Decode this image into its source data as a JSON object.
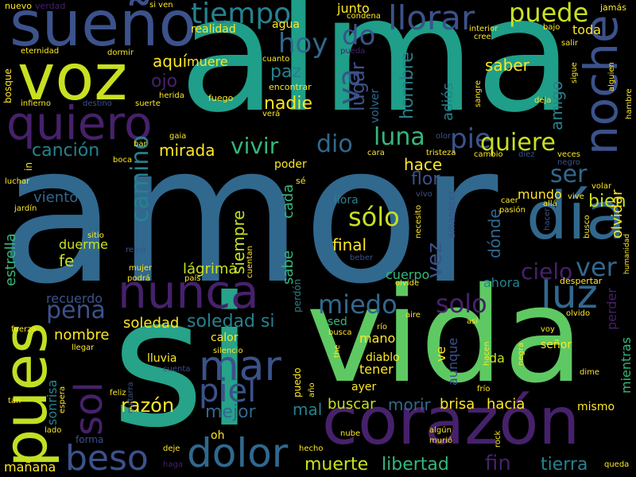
{
  "palette": {
    "background": "#000000",
    "dark_purple": "#46216b",
    "indigo": "#3b528b",
    "blue": "#31688e",
    "teal": "#26828e",
    "green_teal": "#1f9e89",
    "green": "#35b779",
    "light_green": "#6ece58",
    "lime": "#b5de2b",
    "yellow": "#fde725"
  },
  "words": {
    "amor": "amor",
    "alma": "alma",
    "vida": "vida",
    "si": "si",
    "corazon": "corazón",
    "pues": "pues",
    "voz": "voz",
    "sueno": "sueño",
    "quiero": "quiero",
    "noche": "noche",
    "dia": "día",
    "nunca": "nunca",
    "luz": "luz",
    "dolor": "dolor",
    "beso": "beso",
    "sol": "sol",
    "mar": "mar",
    "piel": "piel",
    "tiempo": "tiempo",
    "llorar": "llorar",
    "puede": "puede",
    "hoy": "hoy",
    "do": "do",
    "va": "va",
    "luna": "luna",
    "pie": "pie",
    "quiere": "quiere",
    "vivir": "vivir",
    "dio": "dio",
    "cancion": "canción",
    "mirada": "mirada",
    "camino": "camino",
    "solo": "solo",
    "solo_acc": "sólo",
    "ver": "ver",
    "cielo": "cielo",
    "miedo": "miedo",
    "pena": "pena",
    "soledad": "soledad",
    "soledad_si": "soledad si",
    "razon": "razón",
    "mejor": "mejor",
    "buscar": "buscar",
    "brisa": "brisa",
    "hacia": "hacia",
    "morir": "morir",
    "mal": "mal",
    "tierra": "tierra",
    "libertad": "libertad",
    "muerte": "muerte",
    "fin": "fin",
    "ser": "ser",
    "bien": "bien",
    "amigo": "amigo",
    "flor": "flor",
    "hace": "hace",
    "nadie": "nadie",
    "paz": "paz",
    "lugar": "lugar",
    "hombre": "hombre",
    "saber": "saber",
    "aqui": "aquí",
    "muere": "muere",
    "ojo": "ojo",
    "realidad": "realidad",
    "agua": "agua",
    "junto": "junto",
    "toda": "toda",
    "adios": "adiós",
    "volver": "volver",
    "viento": "viento",
    "estrella": "estrella",
    "lagrima": "lágrima",
    "duerme": "duerme",
    "fe": "fe",
    "sitio": "sitio",
    "recuerdo": "recuerdo",
    "nombre": "nombre",
    "siempre": "siempre",
    "cada": "cada",
    "sabe": "sabe",
    "final": "final",
    "vez": "vez",
    "cuerpo": "cuerpo",
    "donde": "dónde",
    "ahora": "ahora",
    "mundo": "mundo",
    "olvidar": "olvidar",
    "perder": "perder",
    "mientras": "mientras",
    "mismo": "mismo",
    "senor": "señor",
    "da": "da",
    "aunque": "aunque",
    "tener": "tener",
    "ayer": "ayer",
    "ve": "ve",
    "mano": "mano",
    "diablo": "diablo",
    "sed": "sed",
    "calor": "calor",
    "lluvia": "lluvia",
    "sonrisa": "sonrisa",
    "forma": "forma",
    "manana": "mañana",
    "oh": "oh",
    "poder": "poder",
    "nuevo": "nuevo",
    "verdad": "verdad",
    "eternidad": "eternidad",
    "bosque": "bosque",
    "infierno": "infierno",
    "destino": "destino",
    "suerte": "suerte",
    "herida": "herida",
    "dormir": "dormir",
    "cuanto": "cuanto",
    "encontrar": "encontrar",
    "fuego": "fuego",
    "vera": "verá",
    "gaia": "gaia",
    "bar": "bar",
    "boca": "boca",
    "luchar": "luchar",
    "jardin": "jardín",
    "in_w": "in",
    "reino": "reino",
    "mujer": "mujer",
    "podra": "podrá",
    "pais": "país",
    "cuentan": "cuentan",
    "perdon": "perdón",
    "beber": "beber",
    "necesito": "necesito",
    "vivo": "vivo",
    "amanecer": "amanecer",
    "olvide": "olvide",
    "rio": "río",
    "aire": "aire",
    "puedo": "puedo",
    "ano": "año",
    "busca": "busca",
    "the": "the",
    "asi": "así",
    "voy": "voy",
    "olvido": "olvido",
    "dime": "dime",
    "despertar": "despertar",
    "humanidad": "humanidad",
    "nube": "nube",
    "algun": "algún",
    "murio": "murió",
    "rock": "rock",
    "hecho": "hecho",
    "deje": "deje",
    "haga": "haga",
    "lado": "lado",
    "tan": "tan",
    "feliz": "feliz",
    "espera": "espera",
    "guitarra": "guitarra",
    "cuenta": "cuenta",
    "llegar": "llegar",
    "silencio": "silencio",
    "fuerza": "fuerza",
    "hacen": "hacen",
    "negra": "negra",
    "frio": "frío",
    "queda": "queda",
    "jamas": "jamás",
    "alguien": "alguien",
    "hambre": "hambre",
    "sigue": "sigue",
    "deja": "deja",
    "sangre": "sangre",
    "bajo": "bajo",
    "cree": "cree",
    "interior": "interior",
    "salir": "salir",
    "pueda": "pueda",
    "condena": "condena",
    "si_ven": "si ven",
    "veces": "veces",
    "negro": "negro",
    "volar": "volar",
    "tristeza": "tristeza",
    "cara": "cara",
    "olor": "olor",
    "cambio": "cambio",
    "diez": "diez",
    "caer": "caer",
    "pasion": "pasión",
    "alla": "allá",
    "vive": "vive",
    "hacer": "hacer",
    "busco": "busco",
    "se_acc": "sé",
    "llora": "llora"
  }
}
